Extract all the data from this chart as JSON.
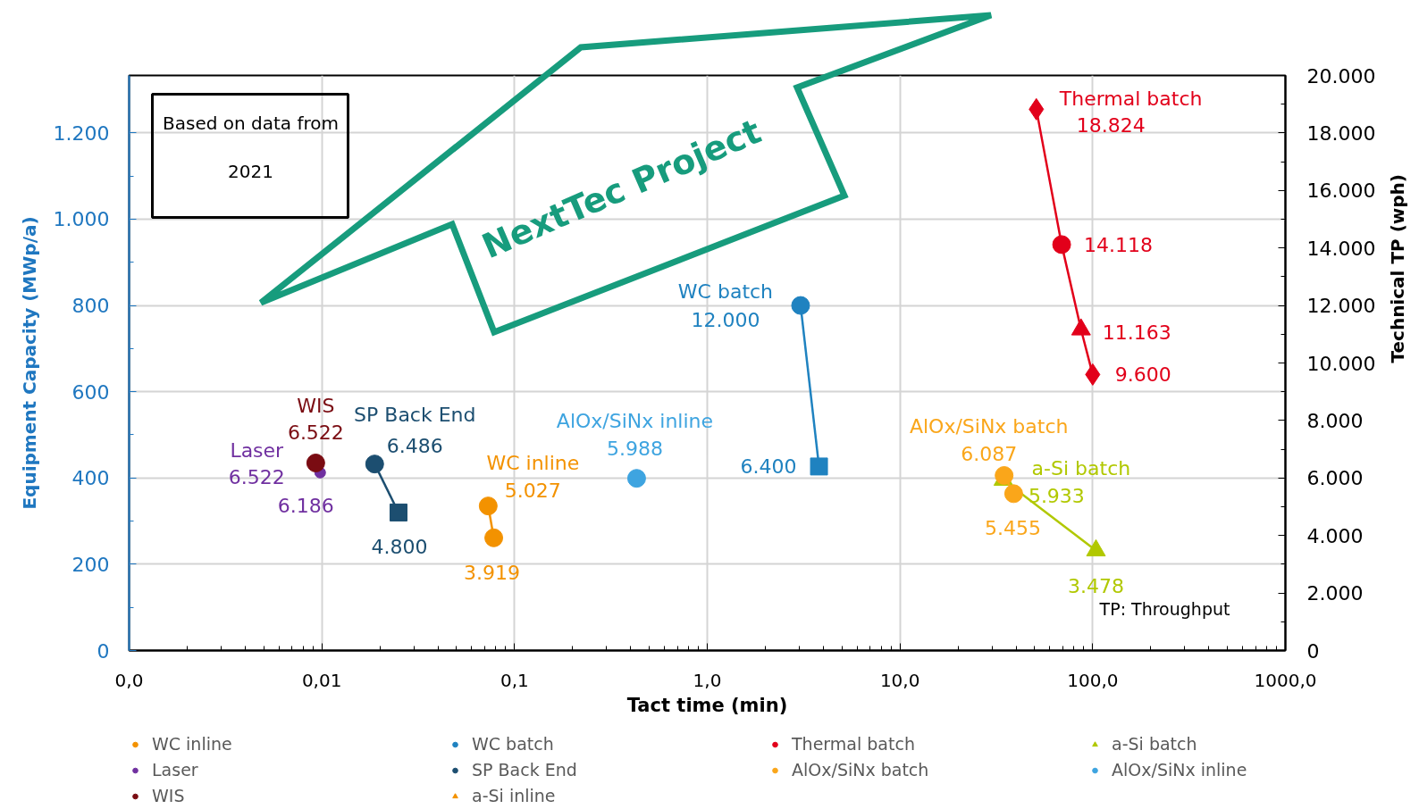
{
  "chart_data": {
    "type": "line",
    "xlabel": "Tact time (min)",
    "ylabel": "Equipment Capacity (MWp/a)",
    "y2label": "Technical TP (wph)",
    "log": "x",
    "xlim": [
      0.001,
      1000
    ],
    "xticks": [
      {
        "value": 0.001,
        "label": "0,0"
      },
      {
        "value": 0.01,
        "label": "0,01"
      },
      {
        "value": 0.1,
        "label": "0,1"
      },
      {
        "value": 1,
        "label": "1,0"
      },
      {
        "value": 10,
        "label": "10,0"
      },
      {
        "value": 100,
        "label": "100,0"
      },
      {
        "value": 1000,
        "label": "1000,0"
      }
    ],
    "ylim": [
      0,
      1333
    ],
    "yticks": [
      0,
      200,
      400,
      600,
      800,
      {
        "value": 1000,
        "label": "1.000"
      },
      {
        "value": 1200,
        "label": "1.200"
      }
    ],
    "y2lim": [
      0,
      20000
    ],
    "y2ticks": [
      0,
      {
        "value": 2000,
        "label": "2.000"
      },
      {
        "value": 4000,
        "label": "4.000"
      },
      {
        "value": 6000,
        "label": "6.000"
      },
      {
        "value": 8000,
        "label": "8.000"
      },
      {
        "value": 10000,
        "label": "10.000"
      },
      {
        "value": 12000,
        "label": "12.000"
      },
      {
        "value": 14000,
        "label": "14.000"
      },
      {
        "value": 16000,
        "label": "16.000"
      },
      {
        "value": 18000,
        "label": "18.000"
      },
      {
        "value": 20000,
        "label": "20.000"
      }
    ],
    "grid": true,
    "legend": "bottom",
    "line_style": "solid",
    "series": [
      {
        "name": "WC inline",
        "color": "#f39200",
        "axis": "y2",
        "marker": "circle",
        "x": [
          0.073,
          0.078
        ],
        "values": [
          5027,
          3919
        ],
        "value_labels": [
          "5.027",
          "3.919"
        ]
      },
      {
        "name": "WC batch",
        "color": "#1f82c0",
        "axis": "y2",
        "marker": [
          "circle",
          "square"
        ],
        "x": [
          3.05,
          3.8
        ],
        "values": [
          12000,
          6400
        ],
        "value_labels": [
          "12.000",
          "6.400"
        ]
      },
      {
        "name": "Thermal batch",
        "color": "#e2001a",
        "axis": "y2",
        "marker": [
          "diamond",
          "circle",
          "triangle",
          "diamond"
        ],
        "x": [
          51,
          69,
          87,
          100
        ],
        "values": [
          18824,
          14118,
          11163,
          9600
        ],
        "value_labels": [
          "18.824",
          "14.118",
          "11.163",
          "9.600"
        ]
      },
      {
        "name": "a-Si batch",
        "color": "#b1c800",
        "axis": "y2",
        "marker": "triangle",
        "x": [
          34.4,
          104
        ],
        "values": [
          5933,
          3478
        ],
        "value_labels": [
          "5.933",
          "3.478"
        ]
      },
      {
        "name": "Laser",
        "type": "scatter",
        "color": "#7030a0",
        "axis": "y2",
        "marker": "circle",
        "x": [
          null,
          0.0098
        ],
        "values": [
          null,
          6186
        ],
        "value_labels": [
          "6.522",
          "6.186"
        ]
      },
      {
        "name": "SP Back End",
        "color": "#1c4e70",
        "axis": "y2",
        "marker": [
          "circle",
          "square"
        ],
        "x": [
          0.0188,
          0.025
        ],
        "values": [
          6486,
          4800
        ],
        "value_labels": [
          "6.486",
          "4.800"
        ]
      },
      {
        "name": "AlOx/SiNx batch",
        "color": "#faa61a",
        "axis": "y2",
        "marker": "circle",
        "x": [
          34.7,
          38.9
        ],
        "values": [
          6087,
          5455
        ],
        "value_labels": [
          "6.087",
          "5.455"
        ]
      },
      {
        "name": "AlOx/SiNx inline",
        "color": "#3ea4e0",
        "axis": "y2",
        "marker": "circle",
        "x": [
          0.43
        ],
        "values": [
          5988
        ],
        "value_labels": [
          "5.988"
        ]
      },
      {
        "name": "WIS",
        "color": "#7a0c12",
        "axis": "y2",
        "marker": "circle",
        "x": [
          0.0093
        ],
        "values": [
          6522
        ],
        "value_labels": [
          "6.522"
        ]
      },
      {
        "name": "a-Si inline",
        "color": "#f39200",
        "axis": "y2",
        "marker": "triangle"
      }
    ],
    "annotations": [
      "Based on data from\n2021",
      "NextTec Project",
      "TP: Throughput"
    ]
  }
}
